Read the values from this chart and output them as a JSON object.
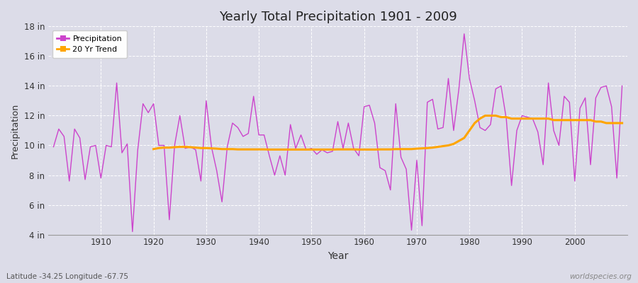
{
  "title": "Yearly Total Precipitation 1901 - 2009",
  "xlabel": "Year",
  "ylabel": "Precipitation",
  "subtitle": "Latitude -34.25 Longitude -67.75",
  "watermark": "worldspecies.org",
  "ylim": [
    4,
    18
  ],
  "yticks": [
    4,
    6,
    8,
    10,
    12,
    14,
    16,
    18
  ],
  "ytick_labels": [
    "4 in",
    "6 in",
    "8 in",
    "10 in",
    "12 in",
    "14 in",
    "16 in",
    "18 in"
  ],
  "xlim": [
    1900,
    2010
  ],
  "precip_color": "#cc44cc",
  "trend_color": "#ffa500",
  "bg_color": "#dcdce8",
  "plot_bg_color": "#dcdce8",
  "grid_color": "#ffffff",
  "years": [
    1901,
    1902,
    1903,
    1904,
    1905,
    1906,
    1907,
    1908,
    1909,
    1910,
    1911,
    1912,
    1913,
    1914,
    1915,
    1916,
    1917,
    1918,
    1919,
    1920,
    1921,
    1922,
    1923,
    1924,
    1925,
    1926,
    1927,
    1928,
    1929,
    1930,
    1931,
    1932,
    1933,
    1934,
    1935,
    1936,
    1937,
    1938,
    1939,
    1940,
    1941,
    1942,
    1943,
    1944,
    1945,
    1946,
    1947,
    1948,
    1949,
    1950,
    1951,
    1952,
    1953,
    1954,
    1955,
    1956,
    1957,
    1958,
    1959,
    1960,
    1961,
    1962,
    1963,
    1964,
    1965,
    1966,
    1967,
    1968,
    1969,
    1970,
    1971,
    1972,
    1973,
    1974,
    1975,
    1976,
    1977,
    1978,
    1979,
    1980,
    1981,
    1982,
    1983,
    1984,
    1985,
    1986,
    1987,
    1988,
    1989,
    1990,
    1991,
    1992,
    1993,
    1994,
    1995,
    1996,
    1997,
    1998,
    1999,
    2000,
    2001,
    2002,
    2003,
    2004,
    2005,
    2006,
    2007,
    2008,
    2009
  ],
  "precip": [
    9.9,
    11.1,
    10.6,
    7.6,
    11.1,
    10.5,
    7.7,
    9.9,
    10.0,
    7.8,
    10.0,
    9.9,
    14.2,
    9.5,
    10.1,
    4.2,
    9.7,
    12.8,
    12.2,
    12.8,
    10.0,
    10.0,
    5.0,
    10.0,
    12.0,
    9.8,
    9.9,
    9.7,
    7.6,
    13.0,
    9.9,
    8.3,
    6.2,
    9.9,
    11.5,
    11.2,
    10.6,
    10.8,
    13.3,
    10.7,
    10.7,
    9.3,
    8.0,
    9.3,
    8.0,
    11.4,
    9.8,
    10.7,
    9.7,
    9.8,
    9.4,
    9.7,
    9.5,
    9.6,
    11.6,
    9.8,
    11.5,
    9.8,
    9.3,
    12.6,
    12.7,
    11.5,
    8.5,
    8.3,
    7.0,
    12.8,
    9.2,
    8.4,
    4.3,
    9.0,
    4.6,
    12.9,
    13.1,
    11.1,
    11.2,
    14.5,
    11.0,
    13.8,
    17.5,
    14.5,
    13.0,
    11.2,
    11.0,
    11.4,
    13.8,
    14.0,
    11.8,
    7.3,
    11.0,
    12.0,
    11.9,
    11.8,
    10.9,
    8.7,
    14.2,
    11.0,
    10.0,
    13.3,
    12.9,
    7.6,
    12.5,
    13.2,
    8.7,
    13.2,
    13.9,
    14.0,
    12.6,
    7.8,
    14.0
  ],
  "trend_years": [
    1920,
    1921,
    1922,
    1923,
    1924,
    1925,
    1926,
    1927,
    1928,
    1929,
    1930,
    1931,
    1932,
    1933,
    1934,
    1935,
    1936,
    1937,
    1938,
    1939,
    1940,
    1941,
    1942,
    1943,
    1944,
    1945,
    1946,
    1947,
    1948,
    1949,
    1950,
    1951,
    1952,
    1953,
    1954,
    1955,
    1956,
    1957,
    1958,
    1959,
    1960,
    1961,
    1962,
    1963,
    1964,
    1965,
    1966,
    1967,
    1968,
    1969,
    1970,
    1971,
    1972,
    1973,
    1974,
    1975,
    1976,
    1977,
    1978,
    1979,
    1980,
    1981,
    1982,
    1983,
    1984,
    1985,
    1986,
    1987,
    1988,
    1989,
    1990,
    1991,
    1992,
    1993,
    1994,
    1995,
    1996,
    1997,
    1998,
    1999,
    2000,
    2001,
    2002,
    2003,
    2004,
    2005,
    2006,
    2007,
    2008,
    2009
  ],
  "trend": [
    9.75,
    9.82,
    9.85,
    9.85,
    9.88,
    9.9,
    9.9,
    9.88,
    9.85,
    9.82,
    9.82,
    9.8,
    9.78,
    9.75,
    9.75,
    9.75,
    9.73,
    9.73,
    9.73,
    9.73,
    9.73,
    9.73,
    9.72,
    9.72,
    9.72,
    9.72,
    9.72,
    9.72,
    9.72,
    9.72,
    9.72,
    9.72,
    9.72,
    9.72,
    9.72,
    9.73,
    9.73,
    9.73,
    9.73,
    9.72,
    9.72,
    9.72,
    9.72,
    9.73,
    9.73,
    9.73,
    9.75,
    9.75,
    9.75,
    9.75,
    9.78,
    9.8,
    9.82,
    9.85,
    9.9,
    9.95,
    10.0,
    10.1,
    10.3,
    10.5,
    11.0,
    11.5,
    11.8,
    12.0,
    12.0,
    12.0,
    11.9,
    11.9,
    11.8,
    11.8,
    11.8,
    11.8,
    11.8,
    11.8,
    11.8,
    11.8,
    11.7,
    11.7,
    11.7,
    11.7,
    11.7,
    11.7,
    11.7,
    11.7,
    11.6,
    11.6,
    11.5,
    11.5,
    11.5,
    11.5
  ]
}
